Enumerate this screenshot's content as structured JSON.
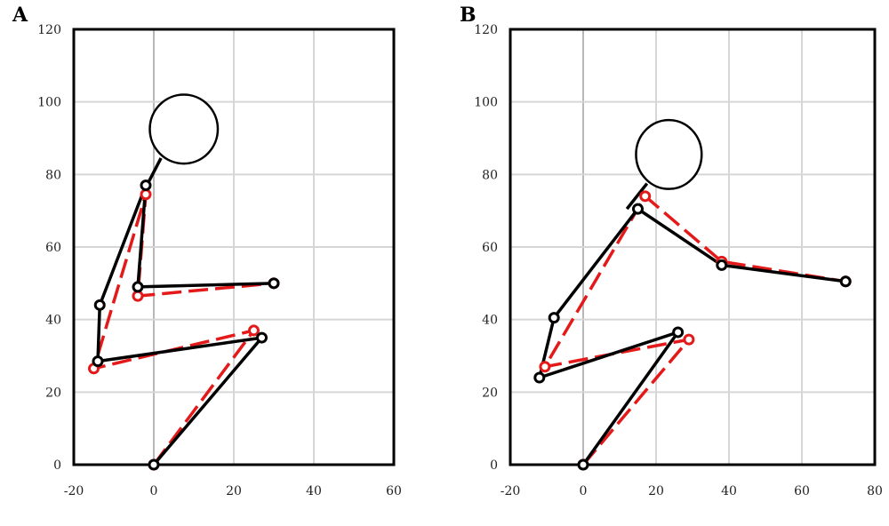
{
  "chart_data": [
    {
      "panel": "A",
      "type": "scatter",
      "xlim": [
        -20,
        60
      ],
      "ylim": [
        0,
        120
      ],
      "xticks": [
        -20,
        0,
        20,
        40,
        60
      ],
      "yticks": [
        0,
        20,
        40,
        60,
        80,
        100,
        120
      ],
      "grid": true,
      "head": {
        "cx": 7.5,
        "cy": 92.5,
        "rx": 8.5,
        "ry": 9.5
      },
      "neck": [
        [
          -1.5,
          77.5
        ],
        [
          1.8,
          84.5
        ]
      ],
      "series": [
        {
          "color": "#000000",
          "style": "solid",
          "points": [
            [
              0,
              0
            ],
            [
              27,
              35
            ],
            [
              -14,
              28.5
            ],
            [
              -13.5,
              44
            ],
            [
              -2,
              77
            ],
            [
              -4,
              49
            ],
            [
              30,
              50
            ]
          ]
        },
        {
          "color": "#e41a1a",
          "style": "dashed",
          "points": [
            [
              0,
              0
            ],
            [
              25,
              37
            ],
            [
              -15,
              26.5
            ],
            [
              -2,
              74.5
            ],
            [
              -4,
              46.5
            ],
            [
              30,
              50
            ]
          ]
        }
      ]
    },
    {
      "panel": "B",
      "type": "scatter",
      "xlim": [
        -20,
        80
      ],
      "ylim": [
        0,
        120
      ],
      "xticks": [
        -20,
        0,
        20,
        40,
        60,
        80
      ],
      "yticks": [
        0,
        20,
        40,
        60,
        80,
        100,
        120
      ],
      "grid": true,
      "head": {
        "cx": 23.5,
        "cy": 85.5,
        "rx": 9,
        "ry": 9.5
      },
      "neck": [
        [
          12,
          70.5
        ],
        [
          17.5,
          77.5
        ]
      ],
      "series": [
        {
          "color": "#000000",
          "style": "solid",
          "points": [
            [
              0,
              0
            ],
            [
              26,
              36.5
            ],
            [
              -12,
              24
            ],
            [
              -8,
              40.5
            ],
            [
              15,
              70.5
            ],
            [
              38,
              55
            ],
            [
              72,
              50.5
            ]
          ]
        },
        {
          "color": "#e41a1a",
          "style": "dashed",
          "points": [
            [
              0,
              0
            ],
            [
              29,
              34.5
            ],
            [
              -10.5,
              27
            ],
            [
              17,
              74
            ],
            [
              38,
              56
            ],
            [
              72,
              50.5
            ]
          ]
        }
      ]
    }
  ]
}
